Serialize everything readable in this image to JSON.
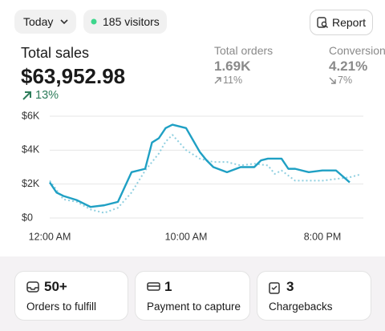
{
  "header": {
    "period": "Today",
    "visitors": "185 visitors",
    "report": "Report"
  },
  "metrics": [
    {
      "label": "Total sales",
      "value": "$63,952.98",
      "change": "13%"
    },
    {
      "label": "Total orders",
      "value": "1.69K",
      "change": "11%"
    },
    {
      "label": "Conversion",
      "value": "4.21%",
      "change": "7%"
    }
  ],
  "chart_data": {
    "type": "line",
    "xlim": [
      0,
      23
    ],
    "xticks": [
      {
        "value": 0,
        "label": "12:00 AM"
      },
      {
        "value": 10,
        "label": "10:00 AM"
      },
      {
        "value": 20,
        "label": "8:00 PM"
      }
    ],
    "ylim": [
      0,
      6000
    ],
    "yticks": [
      {
        "value": 0,
        "label": "$0"
      },
      {
        "value": 2000,
        "label": "$2K"
      },
      {
        "value": 4000,
        "label": "$4K"
      },
      {
        "value": 6000,
        "label": "$6K"
      }
    ],
    "grid": true,
    "series": [
      {
        "color": "#1fa0c4",
        "dashed": false,
        "x": [
          0,
          0.5,
          1,
          2,
          3,
          4,
          5,
          6,
          7,
          7.5,
          8,
          8.5,
          9,
          10,
          10.5,
          11,
          11.5,
          12,
          13,
          14,
          15,
          15.5,
          16,
          17,
          17.5,
          18,
          19,
          20,
          21,
          21.5,
          22
        ],
        "values": [
          2100,
          1500,
          1300,
          1050,
          650,
          750,
          950,
          2700,
          2900,
          4450,
          4700,
          5300,
          5500,
          5300,
          4600,
          3900,
          3400,
          3000,
          2700,
          3000,
          3000,
          3400,
          3500,
          3500,
          2900,
          2900,
          2700,
          2800,
          2800,
          2450,
          2100
        ]
      },
      {
        "color": "#8fcfe0",
        "dashed": true,
        "x": [
          0,
          1,
          2,
          3,
          4,
          5,
          6,
          7,
          8,
          8.5,
          9,
          10,
          11,
          12,
          13,
          14,
          15,
          16,
          16.5,
          17,
          18,
          19,
          20,
          21,
          22,
          22.7
        ],
        "values": [
          2200,
          1100,
          950,
          500,
          300,
          600,
          1500,
          2800,
          3800,
          4500,
          4900,
          4000,
          3500,
          3300,
          3300,
          3100,
          3200,
          3100,
          2600,
          2800,
          2200,
          2200,
          2200,
          2300,
          2400,
          2550
        ]
      }
    ]
  },
  "cards": [
    {
      "value": "50+",
      "label": "Orders to fulfill"
    },
    {
      "value": "1",
      "label": "Payment to capture"
    },
    {
      "value": "3",
      "label": "Chargebacks"
    }
  ]
}
